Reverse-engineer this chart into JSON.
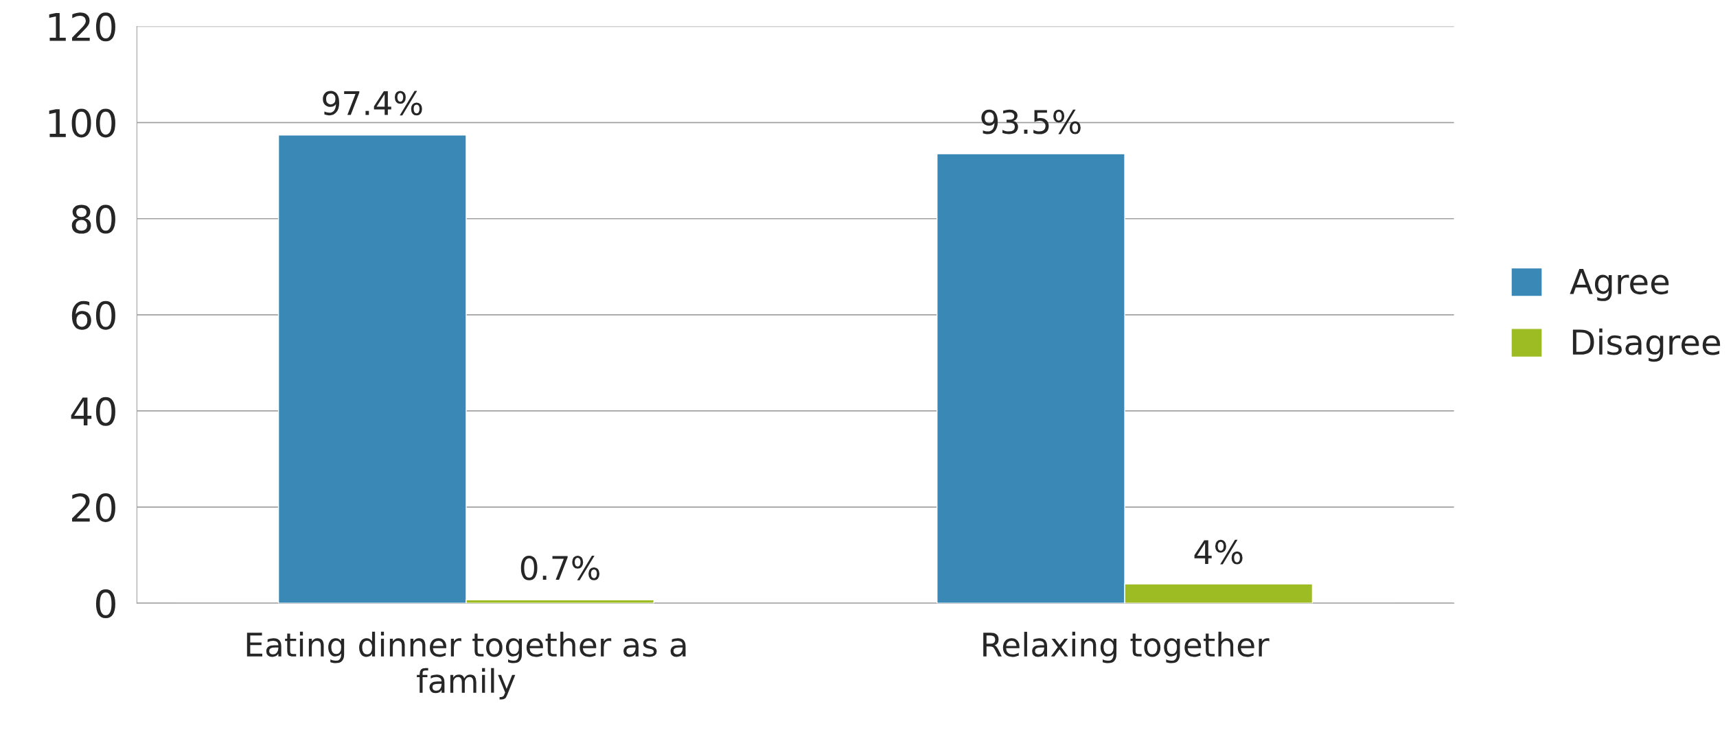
{
  "chart_data": {
    "type": "bar",
    "categories": [
      "Eating dinner together as a family",
      "Relaxing together"
    ],
    "series": [
      {
        "name": "Agree",
        "color": "#3a88b6",
        "values": [
          97.4,
          93.5
        ],
        "value_labels": [
          "97.4%",
          "93.5%"
        ]
      },
      {
        "name": "Disagree",
        "color": "#9dbb22",
        "values": [
          0.7,
          4
        ],
        "value_labels": [
          "0.7%",
          "4%"
        ]
      }
    ],
    "ylim": [
      0,
      120
    ],
    "yticks": [
      0,
      20,
      40,
      60,
      80,
      100,
      120
    ],
    "grid": "y",
    "legend": "right"
  }
}
